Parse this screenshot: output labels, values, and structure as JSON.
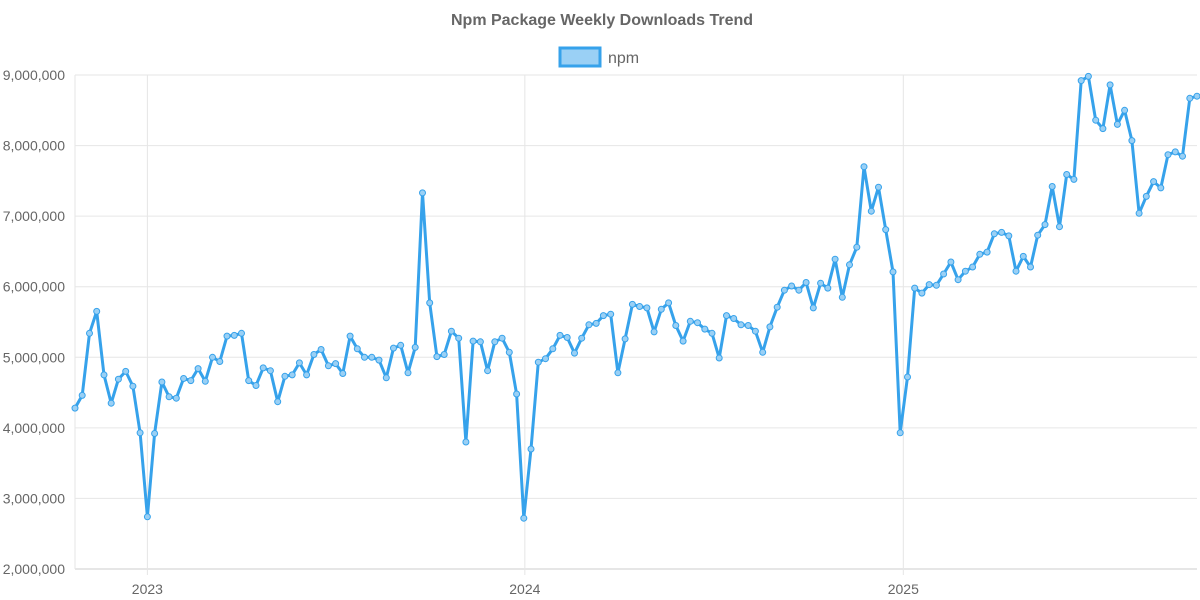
{
  "chart_data": {
    "type": "line",
    "title": "Npm Package Weekly Downloads Trend",
    "xlabel": "",
    "ylabel": "",
    "legend": {
      "position": "top",
      "entries": [
        "npm"
      ]
    },
    "grid": true,
    "ylim": [
      2000000,
      9000000
    ],
    "y_ticks": [
      "2,000,000",
      "3,000,000",
      "4,000,000",
      "5,000,000",
      "6,000,000",
      "7,000,000",
      "8,000,000",
      "9,000,000"
    ],
    "x_ticks": [
      {
        "label": "2023",
        "date": "2023-01-01"
      },
      {
        "label": "2024",
        "date": "2024-01-01"
      },
      {
        "label": "2025",
        "date": "2025-01-01"
      }
    ],
    "x_start": "2022-10-23",
    "x_step_days": 7,
    "series": [
      {
        "name": "npm",
        "color": "#36a2eb",
        "fill": "#9ad0f5",
        "values": [
          4280000,
          4460000,
          5340000,
          5650000,
          4750000,
          4350000,
          4690000,
          4800000,
          4590000,
          3930000,
          2740000,
          3920000,
          4650000,
          4440000,
          4420000,
          4700000,
          4670000,
          4840000,
          4660000,
          5000000,
          4940000,
          5300000,
          5310000,
          5340000,
          4670000,
          4600000,
          4850000,
          4810000,
          4370000,
          4730000,
          4750000,
          4920000,
          4750000,
          5040000,
          5110000,
          4880000,
          4910000,
          4770000,
          5300000,
          5120000,
          5000000,
          5000000,
          4960000,
          4710000,
          5130000,
          5170000,
          4780000,
          5140000,
          7330000,
          5770000,
          5010000,
          5040000,
          5370000,
          5270000,
          3800000,
          5230000,
          5220000,
          4810000,
          5220000,
          5270000,
          5070000,
          4480000,
          2720000,
          3700000,
          4930000,
          4980000,
          5120000,
          5310000,
          5280000,
          5060000,
          5270000,
          5460000,
          5480000,
          5590000,
          5610000,
          4780000,
          5260000,
          5750000,
          5720000,
          5700000,
          5360000,
          5680000,
          5770000,
          5450000,
          5230000,
          5510000,
          5490000,
          5400000,
          5340000,
          4990000,
          5590000,
          5550000,
          5460000,
          5450000,
          5370000,
          5070000,
          5430000,
          5710000,
          5950000,
          6010000,
          5950000,
          6060000,
          5700000,
          6050000,
          5980000,
          6390000,
          5850000,
          6310000,
          6560000,
          7700000,
          7070000,
          7410000,
          6810000,
          6210000,
          3930000,
          4720000,
          5980000,
          5910000,
          6030000,
          6020000,
          6180000,
          6350000,
          6100000,
          6220000,
          6280000,
          6460000,
          6490000,
          6750000,
          6770000,
          6720000,
          6220000,
          6430000,
          6280000,
          6730000,
          6880000,
          7420000,
          6850000,
          7590000,
          7520000,
          8920000,
          8980000,
          8360000,
          8240000,
          8860000,
          8300000,
          8500000,
          8070000,
          7040000,
          7280000,
          7490000,
          7400000,
          7870000,
          7910000,
          7850000,
          8670000,
          8700000
        ]
      }
    ]
  }
}
